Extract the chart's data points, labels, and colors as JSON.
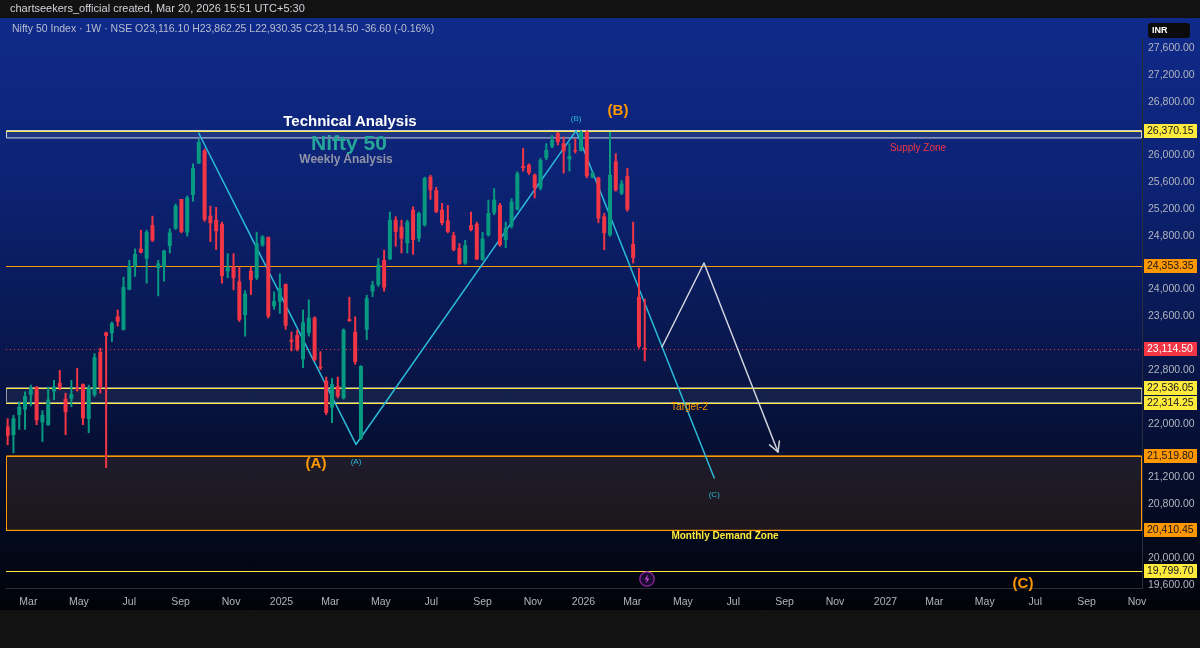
{
  "chart_data": {
    "type": "candlestick",
    "title": "Technical Analysis",
    "subtitle": "Nifty 50",
    "ylabel": "INR",
    "annotations": [
      "chartseekers_official created, Mar 20, 2026 15:51 UTC+5:30",
      "Nifty 50 Index · 1W · NSE  O23,116.10  H23,862.25  L22,930.35  C23,114.50  -36.60 (-0.16%)",
      "Weekly Analysis",
      "(B)",
      "(C)",
      "Supply Zone",
      "(A)",
      "Monthly Demand Zone",
      {
        "text": "Target-2",
        "x": "2026-05-09",
        "y": 22251
      }
    ],
    "x": [
      "2024-02-05",
      "2024-02-12",
      "2024-02-19",
      "2024-02-26",
      "2024-03-04",
      "2024-03-11",
      "2024-03-18",
      "2024-03-25",
      "2024-04-01",
      "2024-04-08",
      "2024-04-15",
      "2024-04-22",
      "2024-04-29",
      "2024-05-06",
      "2024-05-13",
      "2024-05-20",
      "2024-05-27",
      "2024-06-03",
      "2024-06-10",
      "2024-06-17",
      "2024-06-24",
      "2024-07-01",
      "2024-07-08",
      "2024-07-15",
      "2024-07-22",
      "2024-07-29",
      "2024-08-05",
      "2024-08-12",
      "2024-08-19",
      "2024-08-26",
      "2024-09-02",
      "2024-09-09",
      "2024-09-16",
      "2024-09-23",
      "2024-09-30",
      "2024-10-07",
      "2024-10-14",
      "2024-10-21",
      "2024-10-28",
      "2024-11-04",
      "2024-11-11",
      "2024-11-18",
      "2024-11-25",
      "2024-12-02",
      "2024-12-09",
      "2024-12-16",
      "2024-12-23",
      "2024-12-30",
      "2025-01-06",
      "2025-01-13",
      "2025-01-20",
      "2025-01-27",
      "2025-02-03",
      "2025-02-10",
      "2025-02-17",
      "2025-02-24",
      "2025-03-03",
      "2025-03-10",
      "2025-03-17",
      "2025-03-24",
      "2025-03-31",
      "2025-04-07",
      "2025-04-14",
      "2025-04-21",
      "2025-04-28",
      "2025-05-05",
      "2025-05-12",
      "2025-05-19",
      "2025-05-26",
      "2025-06-02",
      "2025-06-09",
      "2025-06-16",
      "2025-06-23",
      "2025-06-30",
      "2025-07-07",
      "2025-07-14",
      "2025-07-21",
      "2025-07-28",
      "2025-08-04",
      "2025-08-11",
      "2025-08-18",
      "2025-08-25",
      "2025-09-01",
      "2025-09-08",
      "2025-09-15",
      "2025-09-22",
      "2025-09-29",
      "2025-10-06",
      "2025-10-13",
      "2025-10-20",
      "2025-10-27",
      "2025-11-03",
      "2025-11-10",
      "2025-11-17",
      "2025-11-24",
      "2025-12-01",
      "2025-12-08",
      "2025-12-15",
      "2025-12-22",
      "2025-12-29",
      "2026-01-05",
      "2026-01-12",
      "2026-01-19",
      "2026-01-26",
      "2026-02-02",
      "2026-02-09",
      "2026-02-16",
      "2026-02-23",
      "2026-03-02",
      "2026-03-09",
      "2026-03-16"
    ],
    "ohlc": [
      [
        21960,
        22080,
        21680,
        21820
      ],
      [
        21830,
        22130,
        21560,
        22080
      ],
      [
        22130,
        22330,
        21910,
        22250
      ],
      [
        22210,
        22480,
        21910,
        22410
      ],
      [
        22430,
        22580,
        22260,
        22530
      ],
      [
        22550,
        22560,
        21980,
        22050
      ],
      [
        22020,
        22200,
        21730,
        22130
      ],
      [
        21980,
        22550,
        21970,
        22360
      ],
      [
        22480,
        22650,
        22350,
        22550
      ],
      [
        22610,
        22800,
        22500,
        22540
      ],
      [
        22370,
        22460,
        21830,
        22170
      ],
      [
        22370,
        22650,
        22250,
        22440
      ],
      [
        22530,
        22830,
        22480,
        22510
      ],
      [
        22590,
        22600,
        21980,
        22080
      ],
      [
        22070,
        22580,
        21860,
        22540
      ],
      [
        22430,
        23050,
        22400,
        22990
      ],
      [
        23070,
        23130,
        22450,
        22550
      ],
      [
        23360,
        23370,
        21340,
        23310
      ],
      [
        23350,
        23520,
        23220,
        23500
      ],
      [
        23600,
        23700,
        23450,
        23520
      ],
      [
        23400,
        24190,
        23390,
        24040
      ],
      [
        24000,
        24440,
        23990,
        24350
      ],
      [
        24350,
        24610,
        24190,
        24530
      ],
      [
        24610,
        24890,
        24540,
        24550
      ],
      [
        24460,
        24890,
        24090,
        24860
      ],
      [
        24960,
        25100,
        24710,
        24730
      ],
      [
        24320,
        24440,
        23900,
        24390
      ],
      [
        24340,
        24590,
        24120,
        24580
      ],
      [
        24650,
        24910,
        24540,
        24850
      ],
      [
        24910,
        25280,
        24890,
        25250
      ],
      [
        25350,
        25350,
        24840,
        24860
      ],
      [
        24850,
        25400,
        24790,
        25370
      ],
      [
        25410,
        25880,
        25310,
        25810
      ],
      [
        25880,
        26250,
        25870,
        26200
      ],
      [
        26070,
        26100,
        25010,
        25040
      ],
      [
        25100,
        25250,
        24710,
        24990
      ],
      [
        25040,
        25230,
        24590,
        24870
      ],
      [
        24980,
        25010,
        24090,
        24200
      ],
      [
        24270,
        24540,
        24170,
        24330
      ],
      [
        24340,
        24540,
        23990,
        24170
      ],
      [
        24120,
        24340,
        23520,
        23550
      ],
      [
        23620,
        23990,
        23300,
        23940
      ],
      [
        24280,
        24340,
        23920,
        24140
      ],
      [
        24170,
        24860,
        24140,
        24690
      ],
      [
        24660,
        24810,
        24640,
        24790
      ],
      [
        24780,
        24790,
        23570,
        23600
      ],
      [
        23750,
        23970,
        23700,
        23830
      ],
      [
        23820,
        24240,
        23640,
        24020
      ],
      [
        24080,
        24090,
        23400,
        23460
      ],
      [
        23250,
        23370,
        23080,
        23220
      ],
      [
        23320,
        23400,
        23080,
        23110
      ],
      [
        22960,
        23700,
        22830,
        23510
      ],
      [
        23350,
        23850,
        23300,
        23580
      ],
      [
        23580,
        23600,
        22930,
        22950
      ],
      [
        22850,
        23080,
        22800,
        22830
      ],
      [
        22640,
        22700,
        22130,
        22160
      ],
      [
        22240,
        22680,
        22010,
        22590
      ],
      [
        22560,
        22700,
        22380,
        22410
      ],
      [
        22380,
        23420,
        22360,
        23400
      ],
      [
        23560,
        23890,
        23520,
        23530
      ],
      [
        23370,
        23600,
        22880,
        22920
      ],
      [
        21780,
        22870,
        21760,
        22860
      ],
      [
        23400,
        23920,
        23250,
        23870
      ],
      [
        23970,
        24130,
        23890,
        24070
      ],
      [
        24070,
        24470,
        24040,
        24370
      ],
      [
        24440,
        24590,
        23970,
        24030
      ],
      [
        24450,
        25160,
        24440,
        25040
      ],
      [
        25040,
        25090,
        24640,
        24860
      ],
      [
        24940,
        25040,
        24540,
        24760
      ],
      [
        24690,
        25040,
        24540,
        25010
      ],
      [
        25190,
        25240,
        24520,
        24740
      ],
      [
        24760,
        25160,
        24710,
        25140
      ],
      [
        24960,
        25680,
        24940,
        25660
      ],
      [
        25680,
        25710,
        25340,
        25480
      ],
      [
        25480,
        25530,
        25140,
        25160
      ],
      [
        25190,
        25290,
        24960,
        24990
      ],
      [
        25030,
        25260,
        24840,
        24860
      ],
      [
        24810,
        24860,
        24570,
        24590
      ],
      [
        24620,
        24690,
        24370,
        24380
      ],
      [
        24390,
        24740,
        24370,
        24660
      ],
      [
        24960,
        25160,
        24870,
        24890
      ],
      [
        24980,
        25010,
        24440,
        24450
      ],
      [
        24440,
        24860,
        24430,
        24760
      ],
      [
        24810,
        25340,
        24790,
        25140
      ],
      [
        25140,
        25510,
        25110,
        25340
      ],
      [
        25260,
        25290,
        24640,
        24660
      ],
      [
        24740,
        25010,
        24620,
        24920
      ],
      [
        24940,
        25360,
        24910,
        25310
      ],
      [
        25190,
        25760,
        25180,
        25730
      ],
      [
        25840,
        26110,
        25760,
        25810
      ],
      [
        25860,
        25880,
        25710,
        25740
      ],
      [
        25710,
        25730,
        25360,
        25510
      ],
      [
        25510,
        25960,
        25480,
        25930
      ],
      [
        25960,
        26180,
        25930,
        26080
      ],
      [
        26130,
        26300,
        26110,
        26230
      ],
      [
        26330,
        26350,
        26150,
        26200
      ],
      [
        26180,
        26280,
        25730,
        26060
      ],
      [
        25940,
        26180,
        25760,
        25990
      ],
      [
        26080,
        26250,
        26030,
        26060
      ],
      [
        26070,
        26370,
        26060,
        26350
      ],
      [
        26350,
        26370,
        25660,
        25690
      ],
      [
        25670,
        25760,
        25660,
        25740
      ],
      [
        25670,
        25680,
        24990,
        25060
      ],
      [
        25090,
        25140,
        24590,
        24840
      ],
      [
        24810,
        26350,
        24790,
        25710
      ],
      [
        25910,
        26030,
        25460,
        25480
      ],
      [
        25430,
        25630,
        25410,
        25580
      ],
      [
        25690,
        25810,
        25160,
        25190
      ],
      [
        24680,
        25010,
        24390,
        24470
      ],
      [
        23890,
        24320,
        23120,
        23150
      ],
      [
        23116.1,
        23862.25,
        22930.35,
        23114.5
      ]
    ],
    "colors": [
      "#f23645",
      "#089981",
      "#089981",
      "#089981",
      "#089981",
      "#f23645",
      "#089981",
      "#089981",
      "#089981",
      "#f23645",
      "#f23645",
      "#089981",
      "#f23645",
      "#f23645",
      "#089981",
      "#089981",
      "#f23645",
      "#f23645",
      "#089981",
      "#f23645",
      "#089981",
      "#089981",
      "#089981",
      "#f23645",
      "#089981",
      "#f23645",
      "#089981",
      "#089981",
      "#089981",
      "#089981",
      "#f23645",
      "#089981",
      "#089981",
      "#089981",
      "#f23645",
      "#f23645",
      "#f23645",
      "#f23645",
      "#089981",
      "#f23645",
      "#f23645",
      "#089981",
      "#f23645",
      "#089981",
      "#089981",
      "#f23645",
      "#089981",
      "#089981",
      "#f23645",
      "#f23645",
      "#f23645",
      "#089981",
      "#089981",
      "#f23645",
      "#f23645",
      "#f23645",
      "#089981",
      "#f23645",
      "#089981",
      "#f23645",
      "#f23645",
      "#089981",
      "#089981",
      "#089981",
      "#089981",
      "#f23645",
      "#089981",
      "#f23645",
      "#f23645",
      "#089981",
      "#f23645",
      "#089981",
      "#089981",
      "#f23645",
      "#f23645",
      "#f23645",
      "#f23645",
      "#f23645",
      "#f23645",
      "#089981",
      "#f23645",
      "#f23645",
      "#089981",
      "#089981",
      "#089981",
      "#f23645",
      "#089981",
      "#089981",
      "#089981",
      "#f23645",
      "#f23645",
      "#f23645",
      "#089981",
      "#089981",
      "#089981",
      "#f23645",
      "#f23645",
      "#089981",
      "#f23645",
      "#089981",
      "#f23645",
      "#089981",
      "#f23645",
      "#f23645",
      "#089981",
      "#f23645",
      "#089981",
      "#f23645",
      "#f23645",
      "#f23645",
      "#f23645"
    ],
    "series": [
      {
        "type": "line",
        "color": "#2bbbd8",
        "x": [
          "2024-09-23",
          "2025-04-01",
          "2025-12-23",
          "2026-06-08"
        ],
        "values": [
          26330,
          21690,
          26370,
          21190
        ],
        "value_labels": [
          null,
          "(A)",
          "(B)",
          "(C)"
        ]
      }
    ],
    "xlim": [
      "2024-02-03",
      "2027-11-07"
    ],
    "xticks": [
      {
        "value": "2024-03-01",
        "label": "Mar"
      },
      {
        "value": "2024-05-01",
        "label": "May"
      },
      {
        "value": "2024-07-01",
        "label": "Jul"
      },
      {
        "value": "2024-09-01",
        "label": "Sep"
      },
      {
        "value": "2024-11-01",
        "label": "Nov"
      },
      {
        "value": "2025-01-01",
        "label": "2025"
      },
      {
        "value": "2025-03-01",
        "label": "Mar"
      },
      {
        "value": "2025-05-01",
        "label": "May"
      },
      {
        "value": "2025-07-01",
        "label": "Jul"
      },
      {
        "value": "2025-09-01",
        "label": "Sep"
      },
      {
        "value": "2025-11-01",
        "label": "Nov"
      },
      {
        "value": "2026-01-01",
        "label": "2026"
      },
      {
        "value": "2026-03-01",
        "label": "Mar"
      },
      {
        "value": "2026-05-01",
        "label": "May"
      },
      {
        "value": "2026-07-01",
        "label": "Jul"
      },
      {
        "value": "2026-09-01",
        "label": "Sep"
      },
      {
        "value": "2026-11-01",
        "label": "Nov"
      },
      {
        "value": "2027-01-01",
        "label": "2027"
      },
      {
        "value": "2027-03-01",
        "label": "Mar"
      },
      {
        "value": "2027-05-01",
        "label": "May"
      },
      {
        "value": "2027-07-01",
        "label": "Jul"
      },
      {
        "value": "2027-09-01",
        "label": "Sep"
      },
      {
        "value": "2027-11-01",
        "label": "Nov"
      }
    ],
    "ylim": [
      19550,
      27750
    ],
    "yticks": [
      {
        "value": 19600,
        "label": "19,600.00"
      },
      {
        "value": 20000,
        "label": "20,000.00"
      },
      {
        "value": 20800,
        "label": "20,800.00"
      },
      {
        "value": 21200,
        "label": "21,200.00"
      },
      {
        "value": 22000,
        "label": "22,000.00"
      },
      {
        "value": 22800,
        "label": "22,800.00"
      },
      {
        "value": 23600,
        "label": "23,600.00"
      },
      {
        "value": 24000,
        "label": "24,000.00"
      },
      {
        "value": 24800,
        "label": "24,800.00"
      },
      {
        "value": 25200,
        "label": "25,200.00"
      },
      {
        "value": 25600,
        "label": "25,600.00"
      },
      {
        "value": 26000,
        "label": "26,000.00"
      },
      {
        "value": 26800,
        "label": "26,800.00"
      },
      {
        "value": 27200,
        "label": "27,200.00"
      },
      {
        "value": 27600,
        "label": "27,600.00"
      }
    ],
    "ref_lines": [
      {
        "axis": "y",
        "value": 26370.15,
        "label": "26,370.15",
        "color": "#ffeb3b"
      },
      {
        "axis": "y",
        "value": 24353.35,
        "label": "24,353.35",
        "color": "#ff9800"
      },
      {
        "axis": "y",
        "value": 23114.5,
        "label": "23,114.50",
        "color": "#f23645",
        "line_style": "dotted"
      },
      {
        "axis": "y",
        "value": 22536.05,
        "label": "22,536.05",
        "color": "#ffeb3b"
      },
      {
        "axis": "y",
        "value": 22314.25,
        "label": "22,314.25",
        "color": "#ffeb3b"
      },
      {
        "axis": "y",
        "value": 21519.8,
        "label": "21,519.80",
        "color": "#ff9800"
      },
      {
        "axis": "y",
        "value": 20410.45,
        "label": "20,410.45",
        "color": "#ff9800"
      },
      {
        "axis": "y",
        "value": 19799.7,
        "label": "19,799.70",
        "color": "#ffeb3b"
      }
    ],
    "bands": [
      {
        "axis": "y",
        "from": 26260,
        "to": 26370.15,
        "color": "#d1d4dc"
      },
      {
        "axis": "y",
        "from": 22314.25,
        "to": 22536.05,
        "color": "#9598a1"
      },
      {
        "axis": "y",
        "from": 20410.45,
        "to": 21519.8,
        "color": "#ff9800"
      }
    ]
  }
}
